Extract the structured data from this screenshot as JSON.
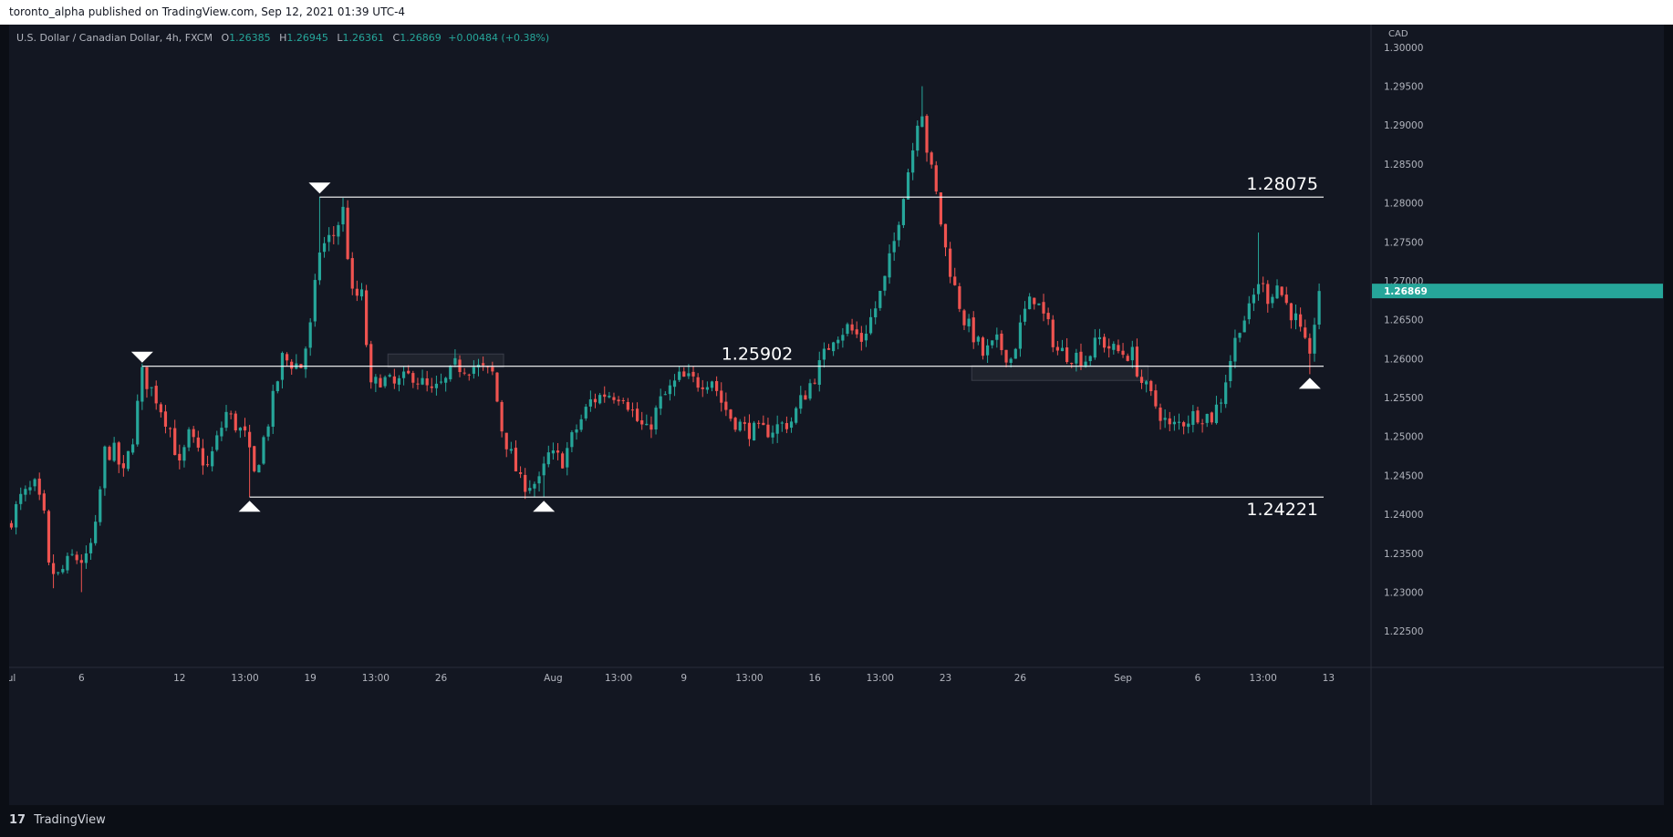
{
  "publisher_line": "toronto_alpha published on TradingView.com, Sep 12, 2021 01:39 UTC-4",
  "header": {
    "symbol": "U.S. Dollar / Canadian Dollar, 4h, FXCM",
    "o_label": "O",
    "o_value": "1.26385",
    "h_label": "H",
    "h_value": "1.26945",
    "l_label": "L",
    "l_value": "1.26361",
    "c_label": "C",
    "c_value": "1.26869",
    "change": "+0.00484 (+0.38%)"
  },
  "footer": {
    "logo": "17",
    "brand": "TradingView"
  },
  "colors": {
    "up": "#26a69a",
    "down": "#ef5350",
    "background": "#131722",
    "line": "#ffffff",
    "grid_text": "#b2b5be"
  },
  "chart_data": {
    "type": "candlestick",
    "price_axis": {
      "currency": "CAD",
      "ylim": [
        1.2215,
        1.3035
      ],
      "ticks": [
        "1.30000",
        "1.29500",
        "1.29000",
        "1.28500",
        "1.28000",
        "1.27500",
        "1.27000",
        "1.26500",
        "1.26000",
        "1.25500",
        "1.25000",
        "1.24500",
        "1.24000",
        "1.23500",
        "1.23000",
        "1.22500"
      ],
      "last_price": "1.26869"
    },
    "time_axis": {
      "ticks": [
        {
          "label": "ul",
          "bar": 0
        },
        {
          "label": "6",
          "bar": 15
        },
        {
          "label": "12",
          "bar": 36
        },
        {
          "label": "13:00",
          "bar": 50
        },
        {
          "label": "19",
          "bar": 64
        },
        {
          "label": "13:00",
          "bar": 78
        },
        {
          "label": "26",
          "bar": 92
        },
        {
          "label": "Aug",
          "bar": 116
        },
        {
          "label": "13:00",
          "bar": 130
        },
        {
          "label": "9",
          "bar": 144
        },
        {
          "label": "13:00",
          "bar": 158
        },
        {
          "label": "16",
          "bar": 172
        },
        {
          "label": "13:00",
          "bar": 186
        },
        {
          "label": "23",
          "bar": 200
        },
        {
          "label": "26",
          "bar": 216
        },
        {
          "label": "Sep",
          "bar": 238
        },
        {
          "label": "6",
          "bar": 254
        },
        {
          "label": "13:00",
          "bar": 268
        },
        {
          "label": "13",
          "bar": 282
        }
      ]
    },
    "levels": [
      {
        "label": "1.28075",
        "price": 1.28075,
        "from_bar": 66,
        "label_side": "right"
      },
      {
        "label": "1.25902",
        "price": 1.25902,
        "from_bar": 28,
        "label_side": "center"
      },
      {
        "label": "1.24221",
        "price": 1.24221,
        "from_bar": 51,
        "label_side": "right"
      }
    ],
    "markers": [
      {
        "type": "down",
        "bar": 28,
        "price": 1.25902
      },
      {
        "type": "down",
        "bar": 66,
        "price": 1.28075
      },
      {
        "type": "up",
        "bar": 51,
        "price": 1.24221
      },
      {
        "type": "up",
        "bar": 114,
        "price": 1.24221
      },
      {
        "type": "up",
        "bar": 278,
        "price": 1.258
      }
    ],
    "zones": [
      {
        "from_bar": 81,
        "to_bar": 105,
        "top": 1.2606,
        "bottom": 1.2589
      },
      {
        "from_bar": 206,
        "to_bar": 243,
        "top": 1.2591,
        "bottom": 1.2572
      }
    ],
    "waypoints": [
      [
        0,
        1.2395
      ],
      [
        2,
        1.242
      ],
      [
        5,
        1.2435
      ],
      [
        7,
        1.2395
      ],
      [
        8,
        1.233
      ],
      [
        10,
        1.232
      ],
      [
        13,
        1.2345
      ],
      [
        16,
        1.234
      ],
      [
        18,
        1.238
      ],
      [
        20,
        1.248
      ],
      [
        22,
        1.248
      ],
      [
        24,
        1.245
      ],
      [
        26,
        1.25
      ],
      [
        28,
        1.258
      ],
      [
        31,
        1.255
      ],
      [
        34,
        1.251
      ],
      [
        36,
        1.246
      ],
      [
        38,
        1.25
      ],
      [
        42,
        1.246
      ],
      [
        46,
        1.253
      ],
      [
        50,
        1.25
      ],
      [
        52,
        1.245
      ],
      [
        55,
        1.252
      ],
      [
        58,
        1.26
      ],
      [
        62,
        1.259
      ],
      [
        64,
        1.264
      ],
      [
        66,
        1.274
      ],
      [
        69,
        1.276
      ],
      [
        71,
        1.279
      ],
      [
        73,
        1.268
      ],
      [
        75,
        1.268
      ],
      [
        77,
        1.256
      ],
      [
        79,
        1.2575
      ],
      [
        82,
        1.2565
      ],
      [
        86,
        1.258
      ],
      [
        90,
        1.2555
      ],
      [
        93,
        1.257
      ],
      [
        95,
        1.259
      ],
      [
        99,
        1.259
      ],
      [
        103,
        1.258
      ],
      [
        105,
        1.251
      ],
      [
        107,
        1.2475
      ],
      [
        109,
        1.244
      ],
      [
        113,
        1.244
      ],
      [
        115,
        1.2475
      ],
      [
        118,
        1.247
      ],
      [
        121,
        1.251
      ],
      [
        124,
        1.2545
      ],
      [
        127,
        1.2555
      ],
      [
        131,
        1.2555
      ],
      [
        134,
        1.252
      ],
      [
        136,
        1.2505
      ],
      [
        139,
        1.2545
      ],
      [
        143,
        1.2575
      ],
      [
        147,
        1.257
      ],
      [
        150,
        1.2575
      ],
      [
        152,
        1.2545
      ],
      [
        154,
        1.2525
      ],
      [
        157,
        1.251
      ],
      [
        160,
        1.2505
      ],
      [
        163,
        1.251
      ],
      [
        167,
        1.252
      ],
      [
        169,
        1.2545
      ],
      [
        173,
        1.259
      ],
      [
        176,
        1.263
      ],
      [
        179,
        1.264
      ],
      [
        182,
        1.2625
      ],
      [
        185,
        1.2665
      ],
      [
        187,
        1.27
      ],
      [
        189,
        1.275
      ],
      [
        191,
        1.2815
      ],
      [
        193,
        1.287
      ],
      [
        194,
        1.291
      ],
      [
        195,
        1.292
      ],
      [
        196,
        1.287
      ],
      [
        198,
        1.281
      ],
      [
        200,
        1.274
      ],
      [
        202,
        1.269
      ],
      [
        204,
        1.265
      ],
      [
        206,
        1.263
      ],
      [
        208,
        1.2605
      ],
      [
        211,
        1.262
      ],
      [
        214,
        1.26
      ],
      [
        217,
        1.266
      ],
      [
        219,
        1.268
      ],
      [
        222,
        1.264
      ],
      [
        224,
        1.261
      ],
      [
        227,
        1.2605
      ],
      [
        230,
        1.26
      ],
      [
        233,
        1.2625
      ],
      [
        236,
        1.261
      ],
      [
        240,
        1.2605
      ],
      [
        242,
        1.257
      ],
      [
        244,
        1.255
      ],
      [
        246,
        1.253
      ],
      [
        248,
        1.251
      ],
      [
        251,
        1.252
      ],
      [
        254,
        1.253
      ],
      [
        257,
        1.2525
      ],
      [
        259,
        1.255
      ],
      [
        261,
        1.26
      ],
      [
        263,
        1.2645
      ],
      [
        265,
        1.266
      ],
      [
        267,
        1.27
      ],
      [
        269,
        1.268
      ],
      [
        271,
        1.2695
      ],
      [
        273,
        1.267
      ],
      [
        275,
        1.265
      ],
      [
        277,
        1.2615
      ],
      [
        278,
        1.2595
      ],
      [
        279,
        1.265
      ],
      [
        280,
        1.2687
      ]
    ]
  }
}
